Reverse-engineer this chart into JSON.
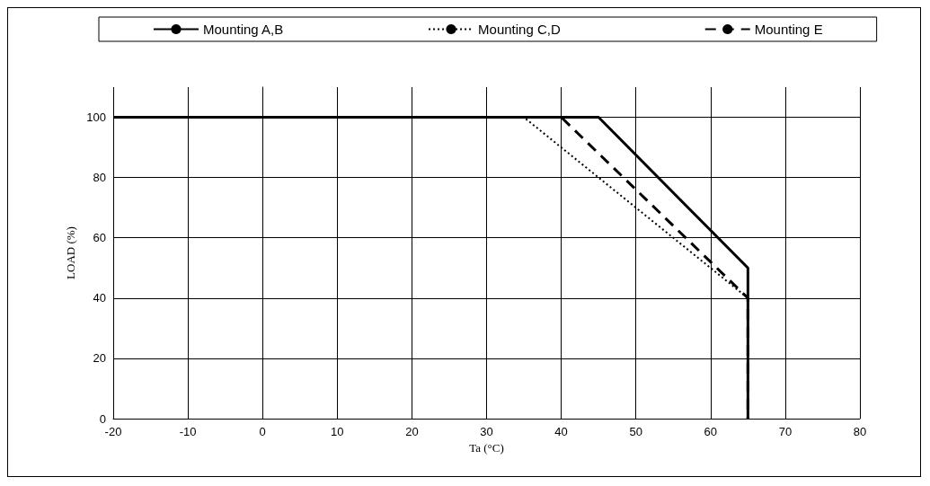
{
  "chart_data": {
    "type": "line",
    "xlabel": "Ta (°C)",
    "ylabel": "LOAD (%)",
    "xlim": [
      -20,
      80
    ],
    "xticks": [
      -20,
      -10,
      0,
      10,
      20,
      30,
      40,
      50,
      60,
      70,
      80
    ],
    "ylim": [
      0,
      110
    ],
    "yticks": [
      0,
      20,
      40,
      60,
      80,
      100
    ],
    "grid": true,
    "legend": "top",
    "marker": "none",
    "series": [
      {
        "name": "Mounting A,B",
        "color": "#000000",
        "line_style": "solid",
        "x": [
          -20,
          45,
          65,
          65
        ],
        "values": [
          100,
          100,
          50,
          0
        ]
      },
      {
        "name": "Mounting C,D",
        "color": "#000000",
        "line_style": "dotted",
        "x": [
          -20,
          35,
          65,
          65
        ],
        "values": [
          100,
          100,
          40,
          0
        ]
      },
      {
        "name": "Mounting E",
        "color": "#000000",
        "line_style": "dashed",
        "x": [
          -20,
          40,
          65,
          65
        ],
        "values": [
          100,
          100,
          40,
          0
        ]
      }
    ]
  }
}
